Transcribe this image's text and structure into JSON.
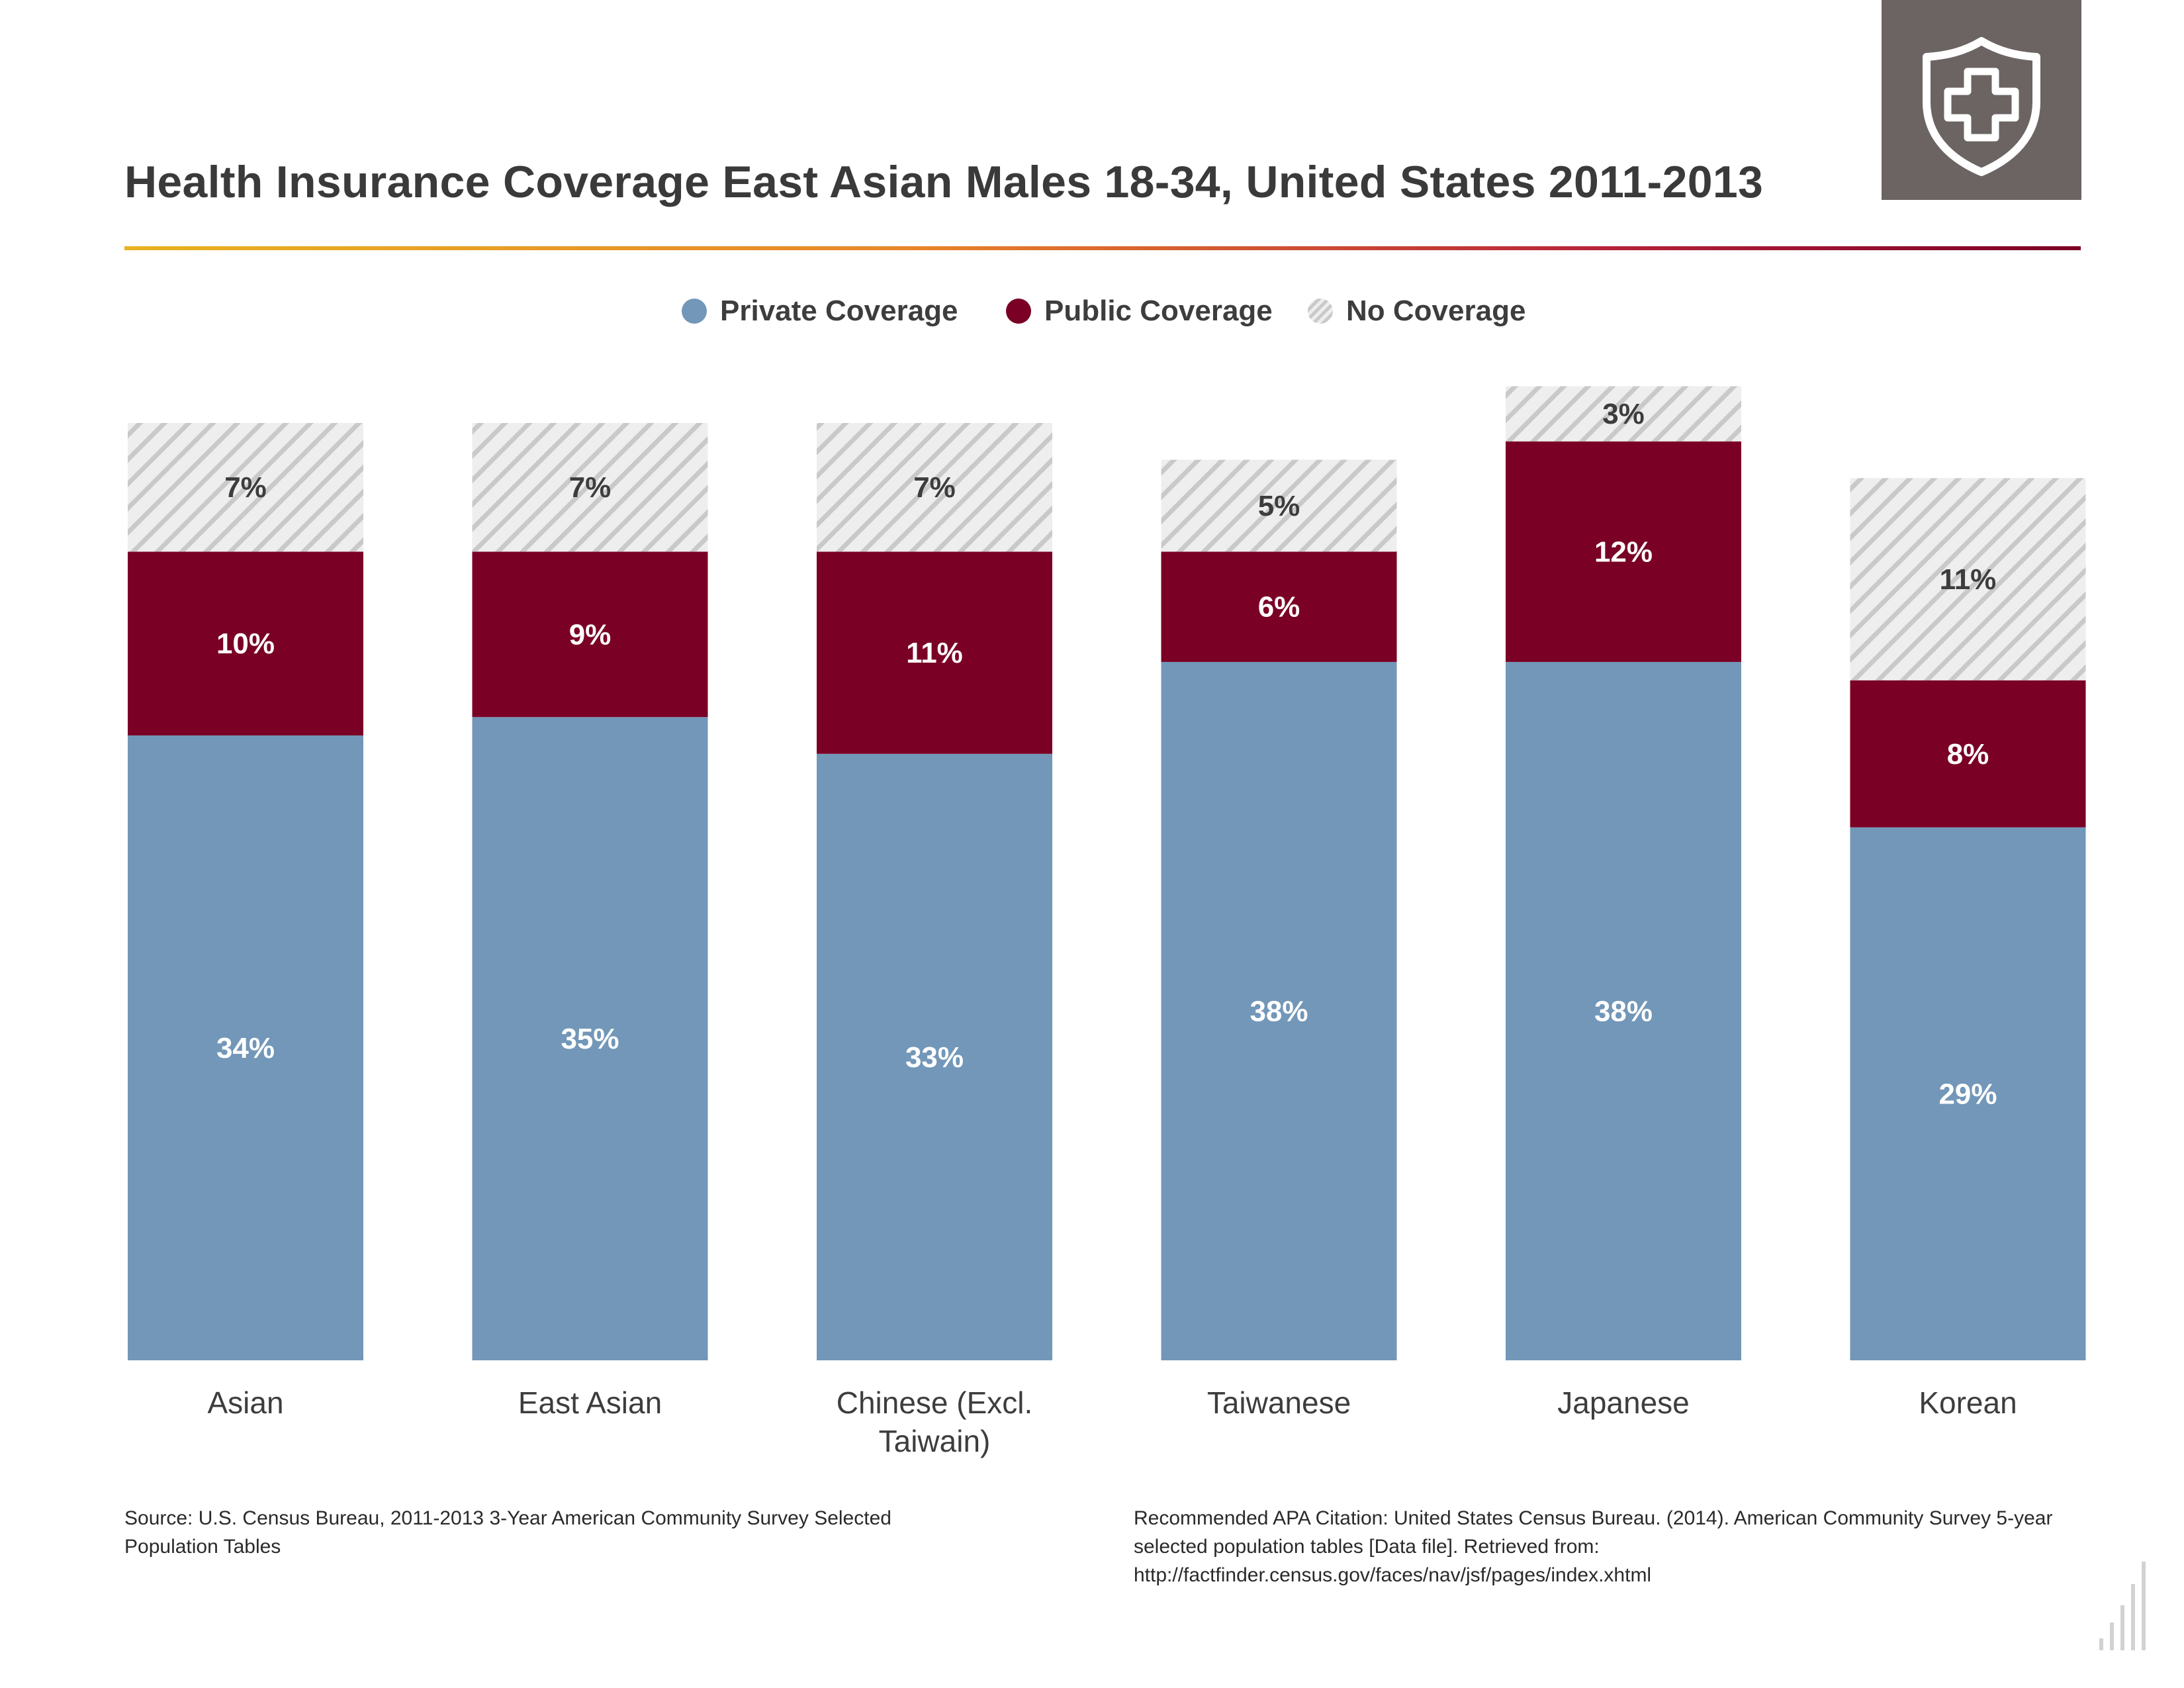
{
  "title": "Health Insurance Coverage East Asian Males 18-34, United States 2011-2013",
  "legend": {
    "private": "Private Coverage",
    "public": "Public Coverage",
    "none": "No Coverage"
  },
  "colors": {
    "private": "#7297b8",
    "public": "#7a0026",
    "none_light": "#eeeeee",
    "none_stripe": "#c9c9c9",
    "accent_start": "#e8b220",
    "accent_end": "#7a0026",
    "badge": "#6b6462"
  },
  "chart_data": {
    "type": "bar",
    "stacked": true,
    "categories": [
      "Asian",
      "East Asian",
      "Chinese (Excl. Taiwain)",
      "Taiwanese",
      "Japanese",
      "Korean"
    ],
    "series": [
      {
        "name": "Private Coverage",
        "values": [
          34,
          35,
          33,
          38,
          38,
          29
        ],
        "labels": [
          "34%",
          "35%",
          "33%",
          "38%",
          "38%",
          "29%"
        ]
      },
      {
        "name": "Public Coverage",
        "values": [
          10,
          9,
          11,
          6,
          12,
          8
        ],
        "labels": [
          "10%",
          "9%",
          "11%",
          "6%",
          "12%",
          "8%"
        ]
      },
      {
        "name": "No Coverage",
        "values": [
          7,
          7,
          7,
          5,
          3,
          11
        ],
        "labels": [
          "7%",
          "7%",
          "7%",
          "5%",
          "3%",
          "11%"
        ]
      }
    ],
    "title": "Health Insurance Coverage East Asian Males 18-34, United States 2011-2013",
    "xlabel": "",
    "ylabel": "",
    "ylim": [
      0,
      51
    ],
    "grid": false,
    "legend_position": "top-center"
  },
  "footer": {
    "source": "Source: U.S. Census Bureau, 2011-2013 3-Year American Community Survey Selected Population Tables",
    "citation": "Recommended APA Citation: United States Census Bureau. (2014). American Community Survey 5-year selected population tables [Data file]. Retrieved from: http://factfinder.census.gov/faces/nav/jsf/pages/index.xhtml"
  },
  "icons": {
    "badge": "shield-medical-cross-icon",
    "corner": "signal-bars-icon"
  }
}
